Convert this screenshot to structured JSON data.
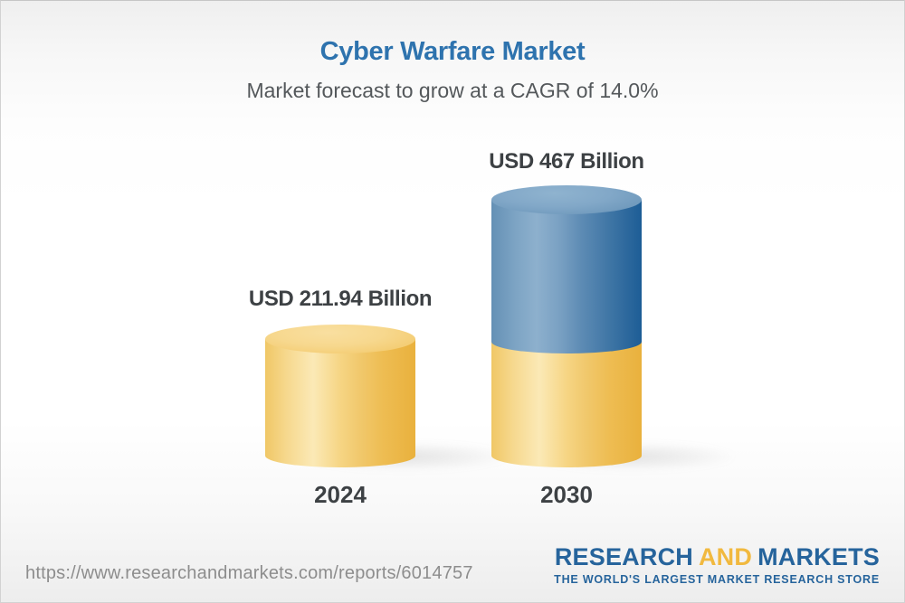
{
  "header": {
    "title": "Cyber Warfare Market",
    "subtitle": "Market forecast to grow at a CAGR of 14.0%",
    "title_color": "#2e73ae"
  },
  "chart_data": {
    "type": "bar",
    "subtype": "3d-cylinder",
    "title": "Cyber Warfare Market",
    "subtitle": "Market forecast to grow at a CAGR of 14.0%",
    "categories": [
      "2024",
      "2030"
    ],
    "values": [
      211.94,
      467
    ],
    "unit": "USD Billion",
    "value_labels": [
      "USD 211.94 Billion",
      "USD 467 Billion"
    ],
    "cagr_percent": 14.0,
    "legend": "none",
    "grid": "off",
    "colors": {
      "base_segment": "#f2c35f",
      "growth_segment": "#3d76a6",
      "label_text": "#3d4144"
    },
    "notes": "2030 cylinder shows 2024 base in gold with incremental growth segment in blue stacked above"
  },
  "chart": {
    "bars": [
      {
        "year": "2024",
        "value_label": "USD 211.94 Billion"
      },
      {
        "year": "2030",
        "value_label": "USD 467 Billion"
      }
    ]
  },
  "footer": {
    "url": "https://www.researchandmarkets.com/reports/6014757",
    "logo": {
      "part1": "RESEARCH",
      "part2": "AND",
      "part3": "MARKETS",
      "tagline": "THE WORLD'S LARGEST MARKET RESEARCH STORE",
      "blue": "#26649c",
      "gold": "#f1b93f"
    }
  }
}
